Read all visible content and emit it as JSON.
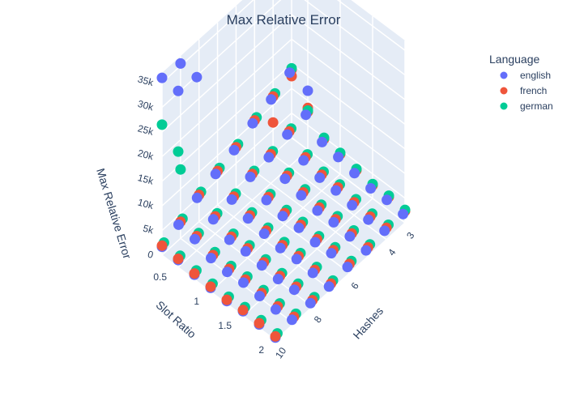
{
  "chart_data": {
    "type": "scatter3d",
    "title": "Max Relative Error",
    "axes": {
      "x": {
        "label": "Hashes",
        "ticks": [
          "3",
          "4",
          "6",
          "8",
          "10"
        ],
        "range": [
          3,
          10
        ]
      },
      "y": {
        "label": "Slot Ratio",
        "ticks": [
          "0.5",
          "1",
          "1.5",
          "2"
        ],
        "range": [
          0.25,
          2
        ]
      },
      "z": {
        "label": "Max Relative Error",
        "ticks": [
          "0",
          "5k",
          "10k",
          "15k",
          "20k",
          "25k",
          "30k",
          "35k"
        ],
        "range": [
          0,
          37000
        ]
      }
    },
    "grid": true,
    "legend": {
      "title": "Language",
      "placement": "top-right",
      "entries": [
        {
          "name": "english",
          "color": "#636efa"
        },
        {
          "name": "french",
          "color": "#ef553b"
        },
        {
          "name": "german",
          "color": "#00cc96"
        }
      ]
    },
    "hashes": [
      3,
      4,
      5,
      6,
      7,
      8,
      9,
      10
    ],
    "slot_ratios": [
      0.25,
      0.5,
      0.75,
      1,
      1.25,
      1.5,
      1.75,
      2
    ],
    "series": [
      {
        "name": "english",
        "color": "#636efa",
        "outliers": [
          {
            "x": 10,
            "y": 0.25,
            "z": 36000
          },
          {
            "x": 9,
            "y": 0.25,
            "z": 35500
          },
          {
            "x": 10,
            "y": 0.5,
            "z": 35800
          },
          {
            "x": 9,
            "y": 0.5,
            "z": 35200
          },
          {
            "x": 3,
            "y": 0.25,
            "z": 29000
          },
          {
            "x": 3,
            "y": 0.5,
            "z": 12000
          }
        ]
      },
      {
        "name": "french",
        "color": "#ef553b",
        "outliers": [
          {
            "x": 3,
            "y": 0.25,
            "z": 12500
          },
          {
            "x": 3,
            "y": 0.5,
            "z": 8500
          },
          {
            "x": 4,
            "y": 0.25,
            "z": 6500
          }
        ]
      },
      {
        "name": "german",
        "color": "#00cc96",
        "outliers": [
          {
            "x": 10,
            "y": 0.25,
            "z": 26500
          },
          {
            "x": 10,
            "y": 0.5,
            "z": 23500
          },
          {
            "x": 9,
            "y": 0.25,
            "z": 14000
          }
        ]
      }
    ]
  }
}
